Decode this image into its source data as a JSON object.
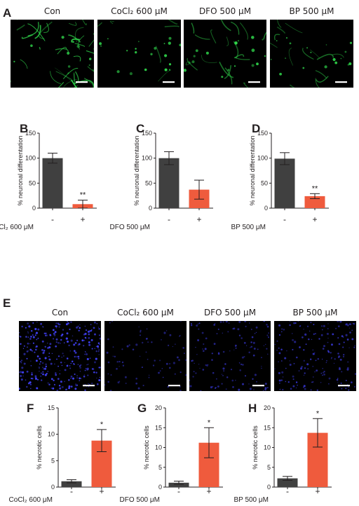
{
  "micrograph_rows": [
    {
      "letter": "A",
      "tint": "#2fd44a",
      "style": "neurites",
      "panels": [
        {
          "label": "Con",
          "density": 1.0
        },
        {
          "label": "CoCl₂ 600 μM",
          "density": 0.15
        },
        {
          "label": "DFO 500 μM",
          "density": 0.45
        },
        {
          "label": "BP 500 μM",
          "density": 0.35
        }
      ]
    },
    {
      "letter": "E",
      "tint": "#3f3ff0",
      "style": "nuclei",
      "panels": [
        {
          "label": "Con",
          "density": 1.0
        },
        {
          "label": "CoCl₂ 600 μM",
          "density": 0.25
        },
        {
          "label": "DFO 500 μM",
          "density": 0.4
        },
        {
          "label": "BP 500 μM",
          "density": 0.55
        }
      ]
    }
  ],
  "colors": {
    "control_bar": "#404040",
    "treated_bar": "#ef5b3d"
  },
  "chart_data": [
    {
      "letter": "B",
      "type": "bar",
      "ylabel": "% neuronal differentation",
      "ylim": [
        0,
        150
      ],
      "yticks": [
        0,
        50,
        100,
        150
      ],
      "treatment": "CoCl₂ 600 μM",
      "categories": [
        "-",
        "+"
      ],
      "values": [
        100,
        8
      ],
      "errors": [
        10,
        8
      ],
      "significance": "**"
    },
    {
      "letter": "C",
      "type": "bar",
      "ylabel": "% neuronal differentation",
      "ylim": [
        0,
        150
      ],
      "yticks": [
        0,
        50,
        100,
        150
      ],
      "treatment": "DFO 500 μM",
      "categories": [
        "-",
        "+"
      ],
      "values": [
        100,
        37
      ],
      "errors": [
        13,
        19
      ],
      "significance": ""
    },
    {
      "letter": "D",
      "type": "bar",
      "ylabel": "% neuronal differentation",
      "ylim": [
        0,
        150
      ],
      "yticks": [
        0,
        50,
        100,
        150
      ],
      "treatment": "BP 500 μM",
      "categories": [
        "-",
        "+"
      ],
      "values": [
        99,
        24
      ],
      "errors": [
        12,
        5
      ],
      "significance": "**"
    },
    {
      "letter": "F",
      "type": "bar",
      "ylabel": "% necrotic cells",
      "ylim": [
        0,
        15
      ],
      "yticks": [
        0,
        5,
        10,
        15
      ],
      "treatment": "CoCl₂ 600 μM",
      "categories": [
        "-",
        "+"
      ],
      "values": [
        1.1,
        8.8
      ],
      "errors": [
        0.3,
        2.1
      ],
      "significance": "*"
    },
    {
      "letter": "G",
      "type": "bar",
      "ylabel": "% necrotic cells",
      "ylim": [
        0,
        20
      ],
      "yticks": [
        0,
        5,
        10,
        15,
        20
      ],
      "treatment": "DFO 500 μM",
      "categories": [
        "-",
        "+"
      ],
      "values": [
        1.1,
        11.2
      ],
      "errors": [
        0.4,
        3.8
      ],
      "significance": "*"
    },
    {
      "letter": "H",
      "type": "bar",
      "ylabel": "% necrotic cells",
      "ylim": [
        0,
        20
      ],
      "yticks": [
        0,
        5,
        10,
        15,
        20
      ],
      "treatment": "BP 500 μM",
      "categories": [
        "-",
        "+"
      ],
      "values": [
        2.2,
        13.7
      ],
      "errors": [
        0.5,
        3.6
      ],
      "significance": "*"
    }
  ]
}
